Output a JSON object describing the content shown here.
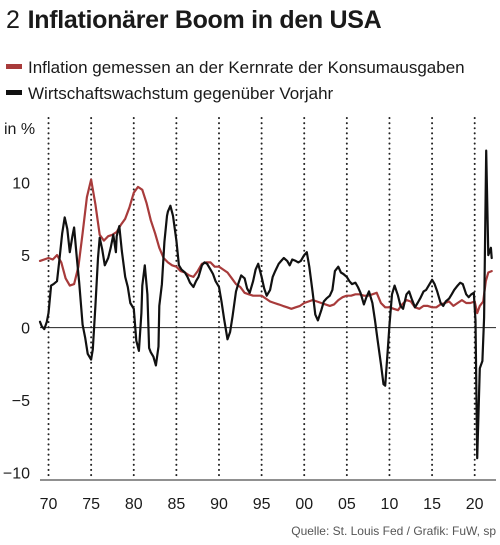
{
  "title_number": "2",
  "title": "Inflationärer Boom in den USA",
  "source": "Quelle: St. Louis Fed / Grafik: FuW, sp",
  "chart_data": {
    "type": "line",
    "ylabel": "in %",
    "xlim": [
      1969,
      2022.5
    ],
    "ylim": [
      -10.5,
      15
    ],
    "x_ticks": [
      1970,
      1975,
      1980,
      1985,
      1990,
      1995,
      2000,
      2005,
      2010,
      2015,
      2020
    ],
    "x_tick_labels": [
      "70",
      "75",
      "80",
      "85",
      "90",
      "95",
      "00",
      "05",
      "10",
      "15",
      "20"
    ],
    "y_ticks": [
      -10,
      -5,
      0,
      5,
      10
    ],
    "y_tick_labels": [
      "−10",
      "−5",
      "0",
      "5",
      "10"
    ],
    "grid": "vertical dotted",
    "series": [
      {
        "name": "Inflation gemessen an der Kernrate der Konsumausgaben",
        "color": "#a83b3b",
        "points": [
          [
            1969,
            4.6
          ],
          [
            1970,
            4.8
          ],
          [
            1970.5,
            4.7
          ],
          [
            1971,
            5.0
          ],
          [
            1971.5,
            4.5
          ],
          [
            1972,
            3.4
          ],
          [
            1972.5,
            2.9
          ],
          [
            1973,
            3.0
          ],
          [
            1973.5,
            4.2
          ],
          [
            1974,
            6.5
          ],
          [
            1974.5,
            9.0
          ],
          [
            1975,
            10.2
          ],
          [
            1975.5,
            8.5
          ],
          [
            1976,
            6.4
          ],
          [
            1976.5,
            6.0
          ],
          [
            1977,
            6.3
          ],
          [
            1977.5,
            6.4
          ],
          [
            1978,
            6.6
          ],
          [
            1978.5,
            7.1
          ],
          [
            1979,
            7.5
          ],
          [
            1979.5,
            8.3
          ],
          [
            1980,
            9.3
          ],
          [
            1980.5,
            9.7
          ],
          [
            1981,
            9.5
          ],
          [
            1981.5,
            8.6
          ],
          [
            1982,
            7.4
          ],
          [
            1982.5,
            6.5
          ],
          [
            1983,
            5.5
          ],
          [
            1983.5,
            4.8
          ],
          [
            1984,
            4.5
          ],
          [
            1984.5,
            4.3
          ],
          [
            1985,
            4.2
          ],
          [
            1985.5,
            3.9
          ],
          [
            1986,
            3.8
          ],
          [
            1986.5,
            3.6
          ],
          [
            1987,
            3.5
          ],
          [
            1987.5,
            3.9
          ],
          [
            1988,
            4.4
          ],
          [
            1988.5,
            4.5
          ],
          [
            1989,
            4.5
          ],
          [
            1989.5,
            4.2
          ],
          [
            1990,
            4.2
          ],
          [
            1990.5,
            4.0
          ],
          [
            1991,
            3.8
          ],
          [
            1991.5,
            3.4
          ],
          [
            1992,
            3.0
          ],
          [
            1992.5,
            2.8
          ],
          [
            1993,
            2.4
          ],
          [
            1993.5,
            2.3
          ],
          [
            1994,
            2.2
          ],
          [
            1994.5,
            2.2
          ],
          [
            1995,
            2.2
          ],
          [
            1995.5,
            2.0
          ],
          [
            1996,
            1.8
          ],
          [
            1996.5,
            1.7
          ],
          [
            1997,
            1.6
          ],
          [
            1997.5,
            1.5
          ],
          [
            1998,
            1.4
          ],
          [
            1998.5,
            1.3
          ],
          [
            1999,
            1.4
          ],
          [
            1999.5,
            1.5
          ],
          [
            2000,
            1.7
          ],
          [
            2000.5,
            1.8
          ],
          [
            2001,
            1.9
          ],
          [
            2001.5,
            1.8
          ],
          [
            2002,
            1.7
          ],
          [
            2002.5,
            1.6
          ],
          [
            2003,
            1.5
          ],
          [
            2003.5,
            1.6
          ],
          [
            2004,
            1.9
          ],
          [
            2004.5,
            2.1
          ],
          [
            2005,
            2.2
          ],
          [
            2005.5,
            2.2
          ],
          [
            2006,
            2.3
          ],
          [
            2006.5,
            2.3
          ],
          [
            2007,
            2.2
          ],
          [
            2007.5,
            2.2
          ],
          [
            2008,
            2.3
          ],
          [
            2008.5,
            2.4
          ],
          [
            2009,
            1.7
          ],
          [
            2009.5,
            1.4
          ],
          [
            2010,
            1.4
          ],
          [
            2010.5,
            1.3
          ],
          [
            2011,
            1.2
          ],
          [
            2011.5,
            1.6
          ],
          [
            2012,
            1.9
          ],
          [
            2012.5,
            1.8
          ],
          [
            2013,
            1.4
          ],
          [
            2013.5,
            1.3
          ],
          [
            2014,
            1.5
          ],
          [
            2014.5,
            1.5
          ],
          [
            2015,
            1.4
          ],
          [
            2015.5,
            1.4
          ],
          [
            2016,
            1.6
          ],
          [
            2016.5,
            1.7
          ],
          [
            2017,
            1.8
          ],
          [
            2017.5,
            1.5
          ],
          [
            2018,
            1.7
          ],
          [
            2018.5,
            1.9
          ],
          [
            2019,
            1.7
          ],
          [
            2019.5,
            1.7
          ],
          [
            2020,
            1.8
          ],
          [
            2020.3,
            1.0
          ],
          [
            2020.6,
            1.5
          ],
          [
            2021,
            1.8
          ],
          [
            2021.3,
            3.2
          ],
          [
            2021.6,
            3.8
          ],
          [
            2022,
            3.9
          ]
        ]
      },
      {
        "name": "Wirtschaftswachstum gegenüber Vorjahr",
        "color": "#111111",
        "points": [
          [
            1969,
            0.4
          ],
          [
            1969.2,
            0.1
          ],
          [
            1969.5,
            -0.1
          ],
          [
            1969.8,
            0.4
          ],
          [
            1970,
            1.0
          ],
          [
            1970.3,
            2.9
          ],
          [
            1970.6,
            3.0
          ],
          [
            1971,
            3.2
          ],
          [
            1971.3,
            4.8
          ],
          [
            1971.6,
            6.5
          ],
          [
            1971.9,
            7.6
          ],
          [
            1972.2,
            6.8
          ],
          [
            1972.5,
            5.2
          ],
          [
            1972.8,
            6.3
          ],
          [
            1973,
            6.9
          ],
          [
            1973.3,
            4.9
          ],
          [
            1973.6,
            3.1
          ],
          [
            1974,
            0.2
          ],
          [
            1974.3,
            -0.7
          ],
          [
            1974.6,
            -1.8
          ],
          [
            1975,
            -2.2
          ],
          [
            1975.2,
            -1.5
          ],
          [
            1975.5,
            1.5
          ],
          [
            1975.8,
            4.8
          ],
          [
            1976,
            6.2
          ],
          [
            1976.3,
            5.4
          ],
          [
            1976.6,
            4.3
          ],
          [
            1977,
            4.8
          ],
          [
            1977.3,
            5.5
          ],
          [
            1977.6,
            6.4
          ],
          [
            1977.9,
            5.2
          ],
          [
            1978,
            6.3
          ],
          [
            1978.3,
            7.0
          ],
          [
            1978.6,
            5.3
          ],
          [
            1979,
            3.5
          ],
          [
            1979.3,
            2.8
          ],
          [
            1979.6,
            1.7
          ],
          [
            1980,
            1.3
          ],
          [
            1980.3,
            -0.9
          ],
          [
            1980.6,
            -1.6
          ],
          [
            1980.9,
            1.0
          ],
          [
            1981,
            2.9
          ],
          [
            1981.3,
            4.3
          ],
          [
            1981.6,
            2.3
          ],
          [
            1981.8,
            -1.4
          ],
          [
            1982,
            -1.7
          ],
          [
            1982.3,
            -2.0
          ],
          [
            1982.6,
            -2.6
          ],
          [
            1982.9,
            -1.3
          ],
          [
            1983,
            1.5
          ],
          [
            1983.3,
            3.0
          ],
          [
            1983.6,
            5.9
          ],
          [
            1983.9,
            7.7
          ],
          [
            1984,
            8.0
          ],
          [
            1984.3,
            8.4
          ],
          [
            1984.6,
            7.7
          ],
          [
            1985,
            6.0
          ],
          [
            1985.3,
            4.3
          ],
          [
            1985.6,
            4.0
          ],
          [
            1986,
            3.8
          ],
          [
            1986.3,
            3.5
          ],
          [
            1986.6,
            3.1
          ],
          [
            1987,
            2.8
          ],
          [
            1987.3,
            3.2
          ],
          [
            1987.6,
            3.5
          ],
          [
            1988,
            4.3
          ],
          [
            1988.3,
            4.5
          ],
          [
            1988.6,
            4.4
          ],
          [
            1989,
            4.0
          ],
          [
            1989.3,
            3.7
          ],
          [
            1989.6,
            3.2
          ],
          [
            1990,
            2.8
          ],
          [
            1990.3,
            1.8
          ],
          [
            1990.6,
            0.6
          ],
          [
            1991,
            -0.8
          ],
          [
            1991.3,
            -0.3
          ],
          [
            1991.6,
            0.8
          ],
          [
            1992,
            2.5
          ],
          [
            1992.3,
            3.1
          ],
          [
            1992.6,
            3.6
          ],
          [
            1993,
            3.4
          ],
          [
            1993.3,
            2.7
          ],
          [
            1993.6,
            2.4
          ],
          [
            1994,
            3.2
          ],
          [
            1994.3,
            4.0
          ],
          [
            1994.6,
            4.4
          ],
          [
            1995,
            3.5
          ],
          [
            1995.3,
            2.7
          ],
          [
            1995.6,
            2.2
          ],
          [
            1996,
            2.6
          ],
          [
            1996.3,
            3.5
          ],
          [
            1996.6,
            3.9
          ],
          [
            1997,
            4.4
          ],
          [
            1997.3,
            4.6
          ],
          [
            1997.6,
            4.8
          ],
          [
            1998,
            4.6
          ],
          [
            1998.3,
            4.3
          ],
          [
            1998.6,
            4.7
          ],
          [
            1999,
            4.6
          ],
          [
            1999.3,
            4.5
          ],
          [
            1999.6,
            4.6
          ],
          [
            2000,
            5.0
          ],
          [
            2000.3,
            5.2
          ],
          [
            2000.6,
            4.2
          ],
          [
            2001,
            2.4
          ],
          [
            2001.3,
            0.9
          ],
          [
            2001.6,
            0.5
          ],
          [
            2002,
            1.2
          ],
          [
            2002.3,
            1.8
          ],
          [
            2002.6,
            2.0
          ],
          [
            2003,
            2.2
          ],
          [
            2003.3,
            2.6
          ],
          [
            2003.6,
            3.9
          ],
          [
            2004,
            4.2
          ],
          [
            2004.3,
            3.8
          ],
          [
            2004.6,
            3.7
          ],
          [
            2005,
            3.5
          ],
          [
            2005.3,
            3.2
          ],
          [
            2005.6,
            3.0
          ],
          [
            2006,
            3.1
          ],
          [
            2006.3,
            2.8
          ],
          [
            2006.6,
            2.4
          ],
          [
            2007,
            1.6
          ],
          [
            2007.3,
            2.1
          ],
          [
            2007.6,
            2.5
          ],
          [
            2008,
            1.7
          ],
          [
            2008.3,
            0.5
          ],
          [
            2008.6,
            -0.8
          ],
          [
            2009,
            -2.5
          ],
          [
            2009.3,
            -3.9
          ],
          [
            2009.5,
            -4.0
          ],
          [
            2009.8,
            -1.5
          ],
          [
            2010,
            0.2
          ],
          [
            2010.3,
            2.3
          ],
          [
            2010.6,
            2.9
          ],
          [
            2011,
            2.2
          ],
          [
            2011.3,
            1.5
          ],
          [
            2011.6,
            1.3
          ],
          [
            2012,
            2.3
          ],
          [
            2012.3,
            2.5
          ],
          [
            2012.6,
            2.0
          ],
          [
            2013,
            1.4
          ],
          [
            2013.3,
            1.7
          ],
          [
            2013.6,
            2.0
          ],
          [
            2014,
            2.5
          ],
          [
            2014.3,
            2.6
          ],
          [
            2014.6,
            2.9
          ],
          [
            2015,
            3.3
          ],
          [
            2015.3,
            3.0
          ],
          [
            2015.6,
            2.5
          ],
          [
            2016,
            1.7
          ],
          [
            2016.3,
            1.5
          ],
          [
            2016.6,
            1.8
          ],
          [
            2017,
            2.0
          ],
          [
            2017.3,
            2.3
          ],
          [
            2017.6,
            2.6
          ],
          [
            2018,
            2.9
          ],
          [
            2018.3,
            3.1
          ],
          [
            2018.6,
            3.0
          ],
          [
            2019,
            2.3
          ],
          [
            2019.3,
            2.1
          ],
          [
            2019.6,
            2.3
          ],
          [
            2019.9,
            2.4
          ],
          [
            2020.1,
            0.5
          ],
          [
            2020.3,
            -9.0
          ],
          [
            2020.6,
            -2.8
          ],
          [
            2020.9,
            -2.3
          ],
          [
            2021.1,
            0.7
          ],
          [
            2021.35,
            12.2
          ],
          [
            2021.6,
            5.0
          ],
          [
            2021.9,
            5.5
          ],
          [
            2022,
            4.8
          ]
        ]
      }
    ]
  }
}
